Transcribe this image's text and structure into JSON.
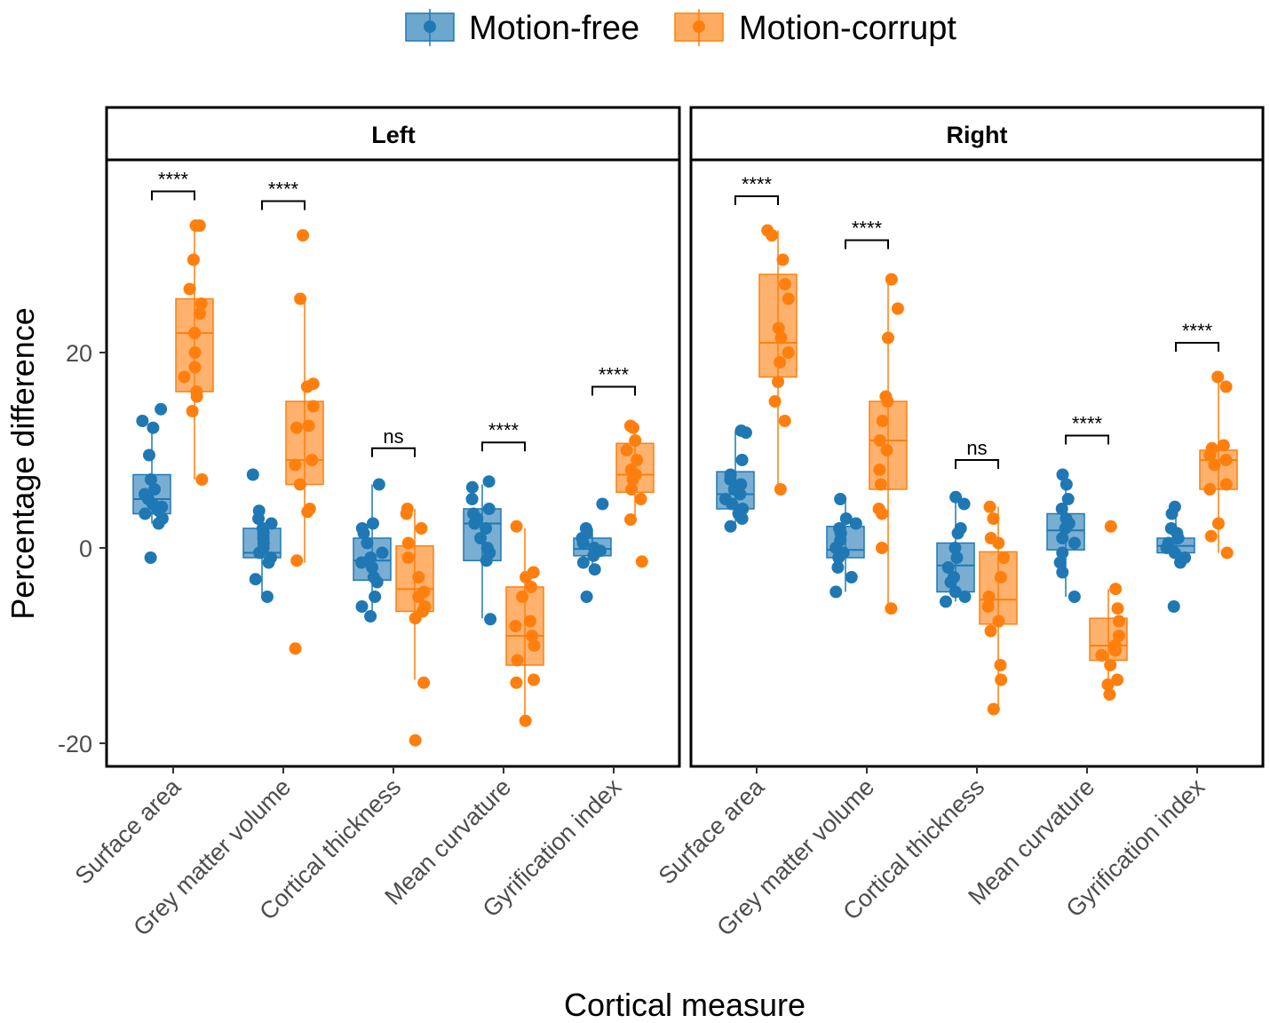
{
  "chart_data": {
    "type": "box",
    "legend": {
      "position": "top",
      "entries": [
        {
          "name": "Motion-free",
          "color": "#1f78b4"
        },
        {
          "name": "Motion-corrupt",
          "color": "#ff7f0e"
        }
      ]
    },
    "xlabel": "Cortical measure",
    "ylabel": "Percentage difference",
    "ylim": [
      -22,
      40
    ],
    "yticks": [
      -20,
      0,
      20
    ],
    "categories": [
      "Surface area",
      "Grey matter volume",
      "Cortical thickness",
      "Mean curvature",
      "Gyrification index"
    ],
    "panels": [
      {
        "title": "Left",
        "groups": [
          {
            "category": "Surface area",
            "significance": "****",
            "bracket_y": 36.5,
            "motion_free": {
              "q1": 3.5,
              "median": 5.0,
              "q3": 7.5,
              "whisker_low": 2.5,
              "whisker_high": 12.5,
              "points": [
                14.2,
                13.0,
                12.3,
                9.5,
                7.0,
                6.0,
                5.5,
                5.0,
                4.5,
                4.2,
                3.8,
                3.5,
                3.0,
                2.5,
                -1.0
              ]
            },
            "motion_corrupt": {
              "q1": 16.0,
              "median": 22.0,
              "q3": 25.5,
              "whisker_low": 7.0,
              "whisker_high": 33.0,
              "points": [
                33.0,
                33.0,
                29.5,
                26.5,
                25.0,
                24.0,
                22.0,
                20.0,
                18.5,
                17.5,
                16.0,
                15.5,
                14.0,
                7.0
              ]
            }
          },
          {
            "category": "Grey matter volume",
            "significance": "****",
            "bracket_y": 35.5,
            "motion_free": {
              "q1": -1.0,
              "median": -0.5,
              "q3": 2.0,
              "whisker_low": -5.0,
              "whisker_high": 3.5,
              "points": [
                7.5,
                3.8,
                3.0,
                2.5,
                2.0,
                1.5,
                1.0,
                0.5,
                0.0,
                -0.5,
                -1.0,
                -1.5,
                -3.2,
                -5.0
              ]
            },
            "motion_corrupt": {
              "q1": 6.5,
              "median": 9.0,
              "q3": 15.0,
              "whisker_low": -1.5,
              "whisker_high": 25.5,
              "points": [
                32.0,
                25.5,
                16.8,
                16.5,
                14.5,
                12.5,
                12.3,
                9.0,
                8.5,
                6.5,
                4.0,
                3.7,
                -1.3,
                -10.3
              ]
            }
          },
          {
            "category": "Cortical thickness",
            "significance": "ns",
            "bracket_y": 10.2,
            "motion_free": {
              "q1": -3.3,
              "median": -1.3,
              "q3": 1.0,
              "whisker_low": -7.0,
              "whisker_high": 6.5,
              "points": [
                6.5,
                2.5,
                2.0,
                1.5,
                0.5,
                -0.5,
                -1.0,
                -1.5,
                -2.0,
                -3.0,
                -3.5,
                -5.0,
                -6.0,
                -7.0
              ]
            },
            "motion_corrupt": {
              "q1": -6.5,
              "median": -4.2,
              "q3": 0.2,
              "whisker_low": -13.5,
              "whisker_high": 4.0,
              "points": [
                4.0,
                3.5,
                2.0,
                0.5,
                -1.0,
                -3.0,
                -4.5,
                -5.0,
                -6.0,
                -6.5,
                -7.2,
                -13.8,
                -19.7
              ]
            }
          },
          {
            "category": "Mean curvature",
            "significance": "****",
            "bracket_y": 10.8,
            "motion_free": {
              "q1": -1.3,
              "median": 2.5,
              "q3": 4.0,
              "whisker_low": -7.2,
              "whisker_high": 6.5,
              "points": [
                6.8,
                6.2,
                5.0,
                4.0,
                3.5,
                3.0,
                2.5,
                2.0,
                1.0,
                0.0,
                -0.5,
                -1.3,
                -7.3
              ]
            },
            "motion_corrupt": {
              "q1": -12.0,
              "median": -9.0,
              "q3": -4.0,
              "whisker_low": -17.5,
              "whisker_high": 2.0,
              "points": [
                2.2,
                -2.5,
                -3.0,
                -4.0,
                -5.0,
                -7.5,
                -8.0,
                -9.0,
                -10.0,
                -11.5,
                -13.5,
                -13.8,
                -17.7
              ]
            }
          },
          {
            "category": "Gyrification index",
            "significance": "****",
            "bracket_y": 16.5,
            "motion_free": {
              "q1": -0.8,
              "median": -0.1,
              "q3": 1.0,
              "whisker_low": -2.5,
              "whisker_high": 2.0,
              "points": [
                4.5,
                2.0,
                1.5,
                1.0,
                0.5,
                0.0,
                -0.3,
                -0.8,
                -1.5,
                -2.2,
                -5.0
              ]
            },
            "motion_corrupt": {
              "q1": 5.7,
              "median": 7.5,
              "q3": 10.7,
              "whisker_low": 2.9,
              "whisker_high": 12.5,
              "points": [
                12.5,
                12.3,
                11.0,
                10.0,
                9.0,
                8.0,
                7.5,
                7.0,
                6.0,
                5.0,
                2.9,
                -1.4
              ]
            }
          }
        ]
      },
      {
        "title": "Right",
        "groups": [
          {
            "category": "Surface area",
            "significance": "****",
            "bracket_y": 36.0,
            "motion_free": {
              "q1": 4.0,
              "median": 5.5,
              "q3": 7.8,
              "whisker_low": 2.2,
              "whisker_high": 12.0,
              "points": [
                12.0,
                11.8,
                9.0,
                7.5,
                7.0,
                6.5,
                6.0,
                5.5,
                5.0,
                4.5,
                4.0,
                3.5,
                3.0,
                2.2
              ]
            },
            "motion_corrupt": {
              "q1": 17.5,
              "median": 21.0,
              "q3": 28.0,
              "whisker_low": 6.0,
              "whisker_high": 32.5,
              "points": [
                32.5,
                32.0,
                29.5,
                27.0,
                25.5,
                22.5,
                21.5,
                20.0,
                19.0,
                17.0,
                15.0,
                13.0,
                6.0
              ]
            }
          },
          {
            "category": "Grey matter volume",
            "significance": "****",
            "bracket_y": 31.5,
            "motion_free": {
              "q1": -1.0,
              "median": -0.2,
              "q3": 2.2,
              "whisker_low": -4.5,
              "whisker_high": 5.0,
              "points": [
                5.0,
                3.0,
                2.5,
                2.0,
                1.5,
                0.8,
                0.0,
                -0.5,
                -1.0,
                -2.0,
                -3.0,
                -4.5
              ]
            },
            "motion_corrupt": {
              "q1": 6.0,
              "median": 11.0,
              "q3": 15.0,
              "whisker_low": -6.2,
              "whisker_high": 27.5,
              "points": [
                27.5,
                24.5,
                21.5,
                15.5,
                15.0,
                13.0,
                11.0,
                10.0,
                8.0,
                6.5,
                4.0,
                3.5,
                0.0,
                -6.2
              ]
            }
          },
          {
            "category": "Cortical thickness",
            "significance": "ns",
            "bracket_y": 9.0,
            "motion_free": {
              "q1": -4.5,
              "median": -1.8,
              "q3": 0.5,
              "whisker_low": -5.5,
              "whisker_high": 5.2,
              "points": [
                5.2,
                4.5,
                2.0,
                1.5,
                0.0,
                -1.0,
                -2.0,
                -3.0,
                -3.5,
                -4.5,
                -5.0,
                -5.5
              ]
            },
            "motion_corrupt": {
              "q1": -7.8,
              "median": -5.3,
              "q3": -0.4,
              "whisker_low": -16.5,
              "whisker_high": 4.2,
              "points": [
                4.2,
                3.0,
                1.0,
                0.5,
                -1.0,
                -3.0,
                -5.0,
                -6.0,
                -7.5,
                -8.5,
                -12.0,
                -13.5,
                -16.5
              ]
            }
          },
          {
            "category": "Mean curvature",
            "significance": "****",
            "bracket_y": 11.5,
            "motion_free": {
              "q1": -0.2,
              "median": 1.8,
              "q3": 3.5,
              "whisker_low": -5.0,
              "whisker_high": 7.5,
              "points": [
                7.5,
                6.5,
                5.0,
                4.0,
                3.0,
                2.5,
                2.0,
                1.0,
                0.5,
                -0.5,
                -1.5,
                -2.5,
                -5.0
              ]
            },
            "motion_corrupt": {
              "q1": -11.5,
              "median": -10.0,
              "q3": -7.2,
              "whisker_low": -15.0,
              "whisker_high": -4.2,
              "points": [
                2.2,
                -4.2,
                -6.2,
                -7.5,
                -9.0,
                -10.0,
                -10.5,
                -11.0,
                -12.0,
                -13.5,
                -14.0,
                -15.0
              ]
            }
          },
          {
            "category": "Gyrification index",
            "significance": "****",
            "bracket_y": 21.0,
            "motion_free": {
              "q1": -0.5,
              "median": 0.2,
              "q3": 1.0,
              "whisker_low": -1.5,
              "whisker_high": 4.2,
              "points": [
                4.2,
                3.5,
                2.0,
                1.5,
                1.0,
                0.5,
                0.0,
                -0.5,
                -1.0,
                -1.5,
                -6.0
              ]
            },
            "motion_corrupt": {
              "q1": 6.0,
              "median": 9.0,
              "q3": 10.0,
              "whisker_low": -0.5,
              "whisker_high": 17.5,
              "points": [
                17.5,
                16.5,
                10.5,
                10.2,
                9.5,
                9.0,
                8.5,
                6.5,
                6.0,
                2.5,
                1.2,
                -0.5
              ]
            }
          }
        ]
      }
    ]
  }
}
